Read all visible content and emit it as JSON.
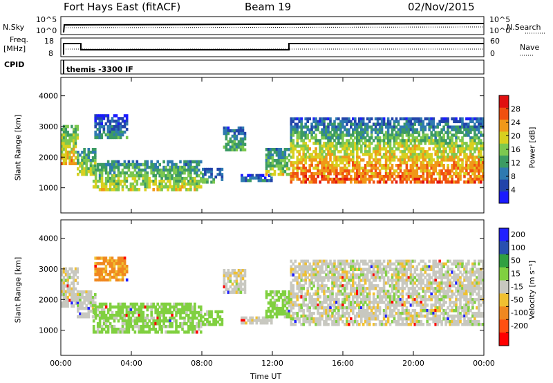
{
  "header": {
    "station": "Fort Hays East (fitACF)",
    "beam": "Beam 19",
    "date": "02/Nov/2015"
  },
  "labels": {
    "nsky": "N.Sky",
    "nsearch": "N.Search",
    "freq_top": "Freq.",
    "freq_unit": "[MHz]",
    "nave": "Nave",
    "cpid": "CPID",
    "cpid_value": "themis -3300 IF",
    "ylabel": "Slant Range [km]",
    "xlabel": "Time UT",
    "power_label": "Power [dB]",
    "velocity_label": "Velocity [m s⁻¹]"
  },
  "noise_ticks": {
    "left": [
      "10^5",
      "10^0"
    ],
    "right": [
      "10^5",
      "10^0"
    ]
  },
  "freq_ticks": {
    "left": [
      "18",
      "8"
    ],
    "right": [
      "60",
      "0"
    ]
  },
  "colors": {
    "power_scale": [
      "#1a1aff",
      "#2244aa",
      "#2e7ab0",
      "#3c9b63",
      "#7dc850",
      "#d8d020",
      "#f09818",
      "#f05010",
      "#e01010"
    ],
    "velocity_scale": [
      "#2020ff",
      "#2850b0",
      "#30a040",
      "#80d040",
      "#c8c8c0",
      "#f0c030",
      "#f08820",
      "#ff5010",
      "#ff0000"
    ]
  },
  "chart_data": [
    {
      "type": "heatmap",
      "name": "Power",
      "x_ticks": [
        "00:00",
        "04:00",
        "08:00",
        "12:00",
        "16:00",
        "20:00",
        "00:00"
      ],
      "xlim_hours": [
        0,
        24
      ],
      "ylim_km": [
        180,
        4600
      ],
      "y_ticks": [
        1000,
        2000,
        3000,
        4000
      ],
      "colorbar_ticks": [
        "28",
        "24",
        "20",
        "16",
        "12",
        "8",
        "4"
      ],
      "colorbar_range_db": [
        0,
        32
      ],
      "regions": [
        {
          "t": [
            0.0,
            1.0
          ],
          "r": [
            1750,
            3050
          ],
          "level": 18
        },
        {
          "t": [
            0.9,
            2.0
          ],
          "r": [
            1400,
            2300
          ],
          "level": 15
        },
        {
          "t": [
            1.8,
            8.0
          ],
          "r": [
            900,
            1900
          ],
          "level": 15
        },
        {
          "t": [
            8.0,
            9.2
          ],
          "r": [
            1150,
            1650
          ],
          "level": 10
        },
        {
          "t": [
            9.2,
            10.5
          ],
          "r": [
            2200,
            3000
          ],
          "level": 11
        },
        {
          "t": [
            10.2,
            12.0
          ],
          "r": [
            1200,
            1450
          ],
          "level": 8
        },
        {
          "t": [
            11.6,
            13.0
          ],
          "r": [
            1400,
            2300
          ],
          "level": 14
        },
        {
          "t": [
            13.0,
            24.0
          ],
          "r": [
            1150,
            2500
          ],
          "level": 22
        },
        {
          "t": [
            13.0,
            24.0
          ],
          "r": [
            2500,
            3300
          ],
          "level": 11
        },
        {
          "t": [
            1.9,
            3.8
          ],
          "r": [
            2600,
            3400
          ],
          "level": 8
        }
      ]
    },
    {
      "type": "heatmap",
      "name": "Velocity",
      "x_ticks": [
        "00:00",
        "04:00",
        "08:00",
        "12:00",
        "16:00",
        "20:00",
        "00:00"
      ],
      "xlim_hours": [
        0,
        24
      ],
      "ylim_km": [
        180,
        4600
      ],
      "y_ticks": [
        1000,
        2000,
        3000,
        4000
      ],
      "colorbar_ticks": [
        "200",
        "100",
        "50",
        "15",
        "-15",
        "-50",
        "-100",
        "-200"
      ],
      "colorbar_range": [
        -250,
        250
      ],
      "regions": [
        {
          "t": [
            0.0,
            1.0
          ],
          "r": [
            1750,
            3050
          ],
          "velocity": 0
        },
        {
          "t": [
            0.9,
            2.0
          ],
          "r": [
            1400,
            2300
          ],
          "velocity": 0
        },
        {
          "t": [
            1.8,
            8.0
          ],
          "r": [
            900,
            1900
          ],
          "velocity": 30
        },
        {
          "t": [
            8.0,
            9.2
          ],
          "r": [
            1150,
            1650
          ],
          "velocity": 30
        },
        {
          "t": [
            9.2,
            10.5
          ],
          "r": [
            2200,
            3000
          ],
          "velocity": 0
        },
        {
          "t": [
            10.2,
            12.0
          ],
          "r": [
            1200,
            1450
          ],
          "velocity": 0
        },
        {
          "t": [
            11.6,
            13.0
          ],
          "r": [
            1400,
            2300
          ],
          "velocity": 30
        },
        {
          "t": [
            13.0,
            24.0
          ],
          "r": [
            1150,
            2500
          ],
          "velocity": 0
        },
        {
          "t": [
            13.0,
            24.0
          ],
          "r": [
            2500,
            3300
          ],
          "velocity": 0
        },
        {
          "t": [
            1.9,
            3.8
          ],
          "r": [
            2600,
            3400
          ],
          "velocity": -60
        }
      ]
    }
  ]
}
